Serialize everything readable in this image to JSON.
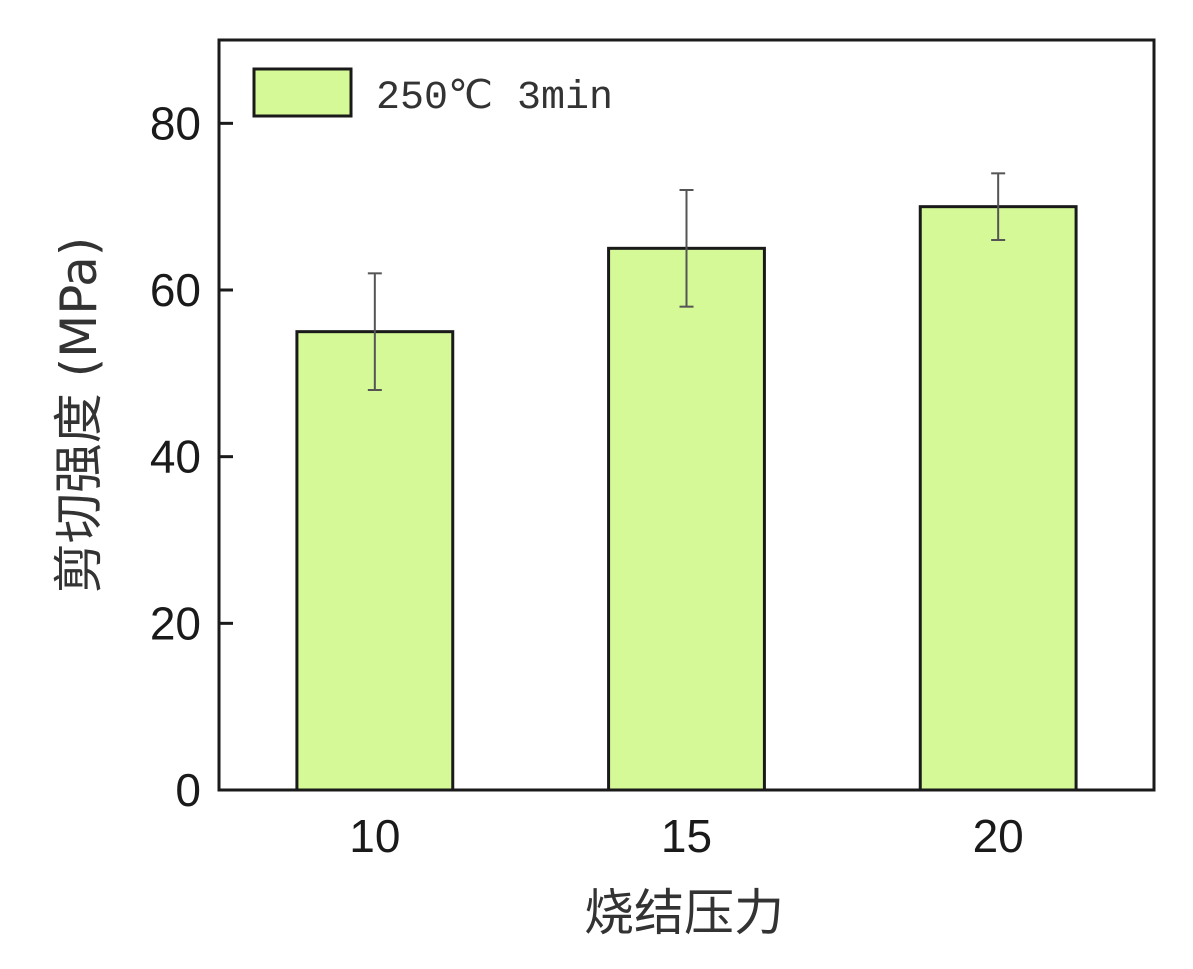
{
  "chart_data": {
    "type": "bar",
    "title": "",
    "xlabel": "烧结压力",
    "ylabel": "剪切强度 (MPa)",
    "categories": [
      "10",
      "15",
      "20"
    ],
    "series": [
      {
        "name": "250℃ 3min",
        "values": [
          55,
          65,
          70
        ],
        "errors": [
          7,
          7,
          4
        ]
      }
    ],
    "ylim": [
      0,
      90
    ],
    "yticks": [
      0,
      20,
      40,
      60,
      80
    ],
    "grid": false,
    "legend_position": "top-left",
    "colors": {
      "bar_fill": "#d4f996",
      "bar_stroke": "#1a1a1a",
      "axis": "#1a1a1a",
      "error": "#555555"
    }
  }
}
